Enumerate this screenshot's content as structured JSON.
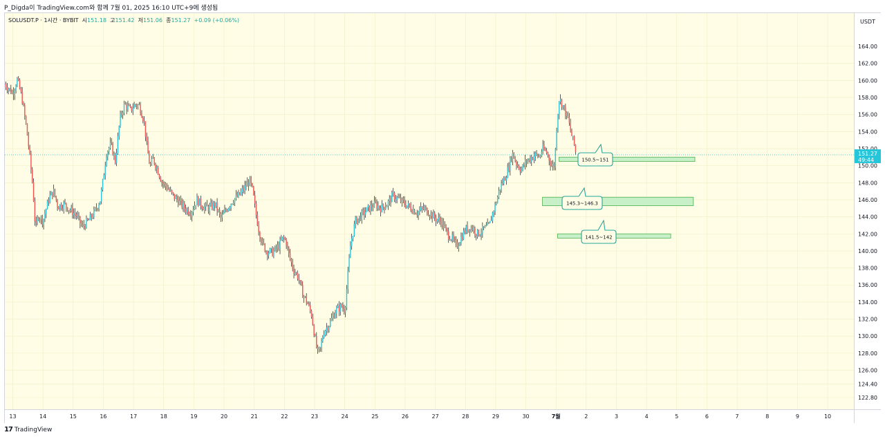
{
  "header": {
    "caption": "P_Digda이 TradingView.com와 함께 7월 01, 2025 16:10 UTC+9에 생성됨"
  },
  "legend": {
    "symbol": "SOLUSDT.P · 1시간 · BYBIT",
    "open_label": "시",
    "open": "151.18",
    "high_label": "고",
    "high": "151.42",
    "low_label": "저",
    "low": "151.06",
    "close_label": "종",
    "close": "151.27",
    "change": "+0.09 (+0.06%)"
  },
  "price_axis": {
    "unit": "USDT"
  },
  "last_price": {
    "price": "151.27",
    "countdown": "49:44",
    "color": "#26c6da"
  },
  "footer": {
    "brand": "TradingView",
    "logo_icon": "tradingview-logo-icon"
  },
  "colors": {
    "up": "#26c6da",
    "down": "#ef5350",
    "wick": "#131722",
    "zone_fill": "#c8f0c8",
    "zone_border": "#4caf50",
    "label_border": "#26a69a",
    "background": "#fffde5"
  },
  "chart_data": {
    "type": "candlestick",
    "title": "",
    "xlabel": "",
    "ylabel": "",
    "ylim": [
      121.2,
      167.2
    ],
    "y_ticks": [
      122.8,
      124.4,
      126.0,
      128.0,
      130.0,
      132.0,
      134.0,
      136.0,
      138.0,
      140.0,
      142.0,
      144.0,
      146.0,
      148.0,
      150.0,
      152.0,
      154.0,
      156.0,
      158.0,
      160.0,
      162.0,
      164.0
    ],
    "y_tick_labels": [
      "122.80",
      "124.40",
      "126.00",
      "128.00",
      "130.00",
      "132.00",
      "134.00",
      "136.00",
      "138.00",
      "140.00",
      "142.00",
      "144.00",
      "146.00",
      "148.00",
      "150.00",
      "152.00",
      "154.00",
      "156.00",
      "158.00",
      "160.00",
      "162.00",
      "164.00"
    ],
    "x_tick_labels": [
      "13",
      "14",
      "15",
      "16",
      "17",
      "18",
      "19",
      "20",
      "21",
      "22",
      "23",
      "24",
      "25",
      "26",
      "27",
      "28",
      "29",
      "30",
      "7월",
      "2",
      "3",
      "4",
      "5",
      "6",
      "7",
      "8",
      "9",
      "10"
    ],
    "x_tick_days": [
      0,
      1,
      2,
      3,
      4,
      5,
      6,
      7,
      8,
      9,
      10,
      11,
      12,
      13,
      14,
      15,
      16,
      17,
      18,
      19,
      20,
      21,
      22,
      23,
      24,
      25,
      26,
      27
    ],
    "x_range_days": [
      -0.27,
      27.9
    ],
    "price_path": [
      [
        -0.27,
        159.6
      ],
      [
        0.0,
        158.5
      ],
      [
        0.15,
        160.1
      ],
      [
        0.3,
        158.0
      ],
      [
        0.45,
        154.5
      ],
      [
        0.55,
        151.5
      ],
      [
        0.65,
        148.0
      ],
      [
        0.7,
        145.5
      ],
      [
        0.75,
        142.5
      ],
      [
        0.85,
        144.2
      ],
      [
        1.0,
        143.5
      ],
      [
        1.2,
        146.2
      ],
      [
        1.35,
        147.0
      ],
      [
        1.5,
        145.2
      ],
      [
        1.7,
        145.5
      ],
      [
        1.9,
        144.8
      ],
      [
        2.1,
        144.2
      ],
      [
        2.3,
        142.8
      ],
      [
        2.5,
        143.5
      ],
      [
        2.7,
        144.5
      ],
      [
        2.9,
        146.0
      ],
      [
        3.0,
        148.5
      ],
      [
        3.1,
        151.5
      ],
      [
        3.25,
        152.5
      ],
      [
        3.4,
        150.5
      ],
      [
        3.55,
        155.5
      ],
      [
        3.7,
        157.2
      ],
      [
        3.9,
        156.5
      ],
      [
        4.05,
        157.2
      ],
      [
        4.2,
        157.0
      ],
      [
        4.35,
        155.2
      ],
      [
        4.45,
        152.0
      ],
      [
        4.55,
        149.8
      ],
      [
        4.65,
        150.8
      ],
      [
        4.8,
        149.5
      ],
      [
        4.95,
        148.0
      ],
      [
        5.1,
        147.5
      ],
      [
        5.3,
        146.5
      ],
      [
        5.5,
        145.8
      ],
      [
        5.7,
        145.0
      ],
      [
        5.9,
        144.5
      ],
      [
        6.1,
        146.0
      ],
      [
        6.3,
        145.2
      ],
      [
        6.5,
        145.0
      ],
      [
        6.7,
        145.5
      ],
      [
        6.9,
        143.8
      ],
      [
        7.1,
        145.0
      ],
      [
        7.3,
        146.0
      ],
      [
        7.5,
        146.5
      ],
      [
        7.7,
        147.5
      ],
      [
        7.85,
        148.2
      ],
      [
        7.95,
        147.0
      ],
      [
        8.05,
        144.5
      ],
      [
        8.15,
        142.5
      ],
      [
        8.25,
        141.0
      ],
      [
        8.4,
        140.0
      ],
      [
        8.6,
        139.8
      ],
      [
        8.8,
        140.5
      ],
      [
        8.95,
        141.5
      ],
      [
        9.05,
        141.2
      ],
      [
        9.15,
        139.5
      ],
      [
        9.3,
        137.8
      ],
      [
        9.45,
        137.0
      ],
      [
        9.6,
        135.0
      ],
      [
        9.75,
        134.0
      ],
      [
        9.9,
        132.5
      ],
      [
        10.0,
        130.0
      ],
      [
        10.1,
        128.0
      ],
      [
        10.2,
        128.6
      ],
      [
        10.3,
        130.5
      ],
      [
        10.5,
        131.5
      ],
      [
        10.7,
        133.0
      ],
      [
        10.9,
        133.5
      ],
      [
        11.0,
        133.0
      ],
      [
        11.1,
        137.0
      ],
      [
        11.2,
        141.0
      ],
      [
        11.35,
        143.5
      ],
      [
        11.5,
        144.0
      ],
      [
        11.65,
        144.5
      ],
      [
        11.8,
        145.0
      ],
      [
        12.0,
        145.5
      ],
      [
        12.2,
        145.0
      ],
      [
        12.4,
        145.5
      ],
      [
        12.6,
        146.5
      ],
      [
        12.8,
        146.0
      ],
      [
        13.0,
        145.5
      ],
      [
        13.2,
        145.0
      ],
      [
        13.4,
        144.5
      ],
      [
        13.6,
        145.0
      ],
      [
        13.8,
        144.5
      ],
      [
        14.0,
        143.8
      ],
      [
        14.2,
        143.5
      ],
      [
        14.4,
        142.0
      ],
      [
        14.55,
        141.5
      ],
      [
        14.7,
        140.5
      ],
      [
        14.85,
        141.5
      ],
      [
        15.0,
        142.5
      ],
      [
        15.2,
        142.8
      ],
      [
        15.4,
        142.0
      ],
      [
        15.6,
        142.5
      ],
      [
        15.8,
        143.0
      ],
      [
        15.9,
        144.5
      ],
      [
        16.0,
        145.5
      ],
      [
        16.15,
        147.5
      ],
      [
        16.3,
        148.5
      ],
      [
        16.45,
        150.0
      ],
      [
        16.55,
        151.5
      ],
      [
        16.7,
        150.2
      ],
      [
        16.85,
        149.5
      ],
      [
        17.0,
        150.5
      ],
      [
        17.15,
        150.8
      ],
      [
        17.3,
        151.3
      ],
      [
        17.45,
        151.0
      ],
      [
        17.55,
        152.0
      ],
      [
        17.7,
        151.5
      ],
      [
        17.85,
        150.0
      ],
      [
        17.95,
        150.0
      ],
      [
        18.03,
        155.0
      ],
      [
        18.1,
        157.8
      ],
      [
        18.2,
        157.3
      ],
      [
        18.3,
        156.3
      ],
      [
        18.4,
        155.5
      ],
      [
        18.5,
        153.8
      ],
      [
        18.6,
        152.5
      ],
      [
        18.67,
        151.2
      ]
    ],
    "zones": [
      {
        "label": "150.5~151",
        "low": 150.5,
        "high": 151.0,
        "x_start": 18.1,
        "x_end": 22.6
      },
      {
        "label": "145.3~146.3",
        "low": 145.3,
        "high": 146.3,
        "x_start": 17.55,
        "x_end": 22.55
      },
      {
        "label": "141.5~142",
        "low": 141.5,
        "high": 142.0,
        "x_start": 18.05,
        "x_end": 21.8
      }
    ]
  }
}
